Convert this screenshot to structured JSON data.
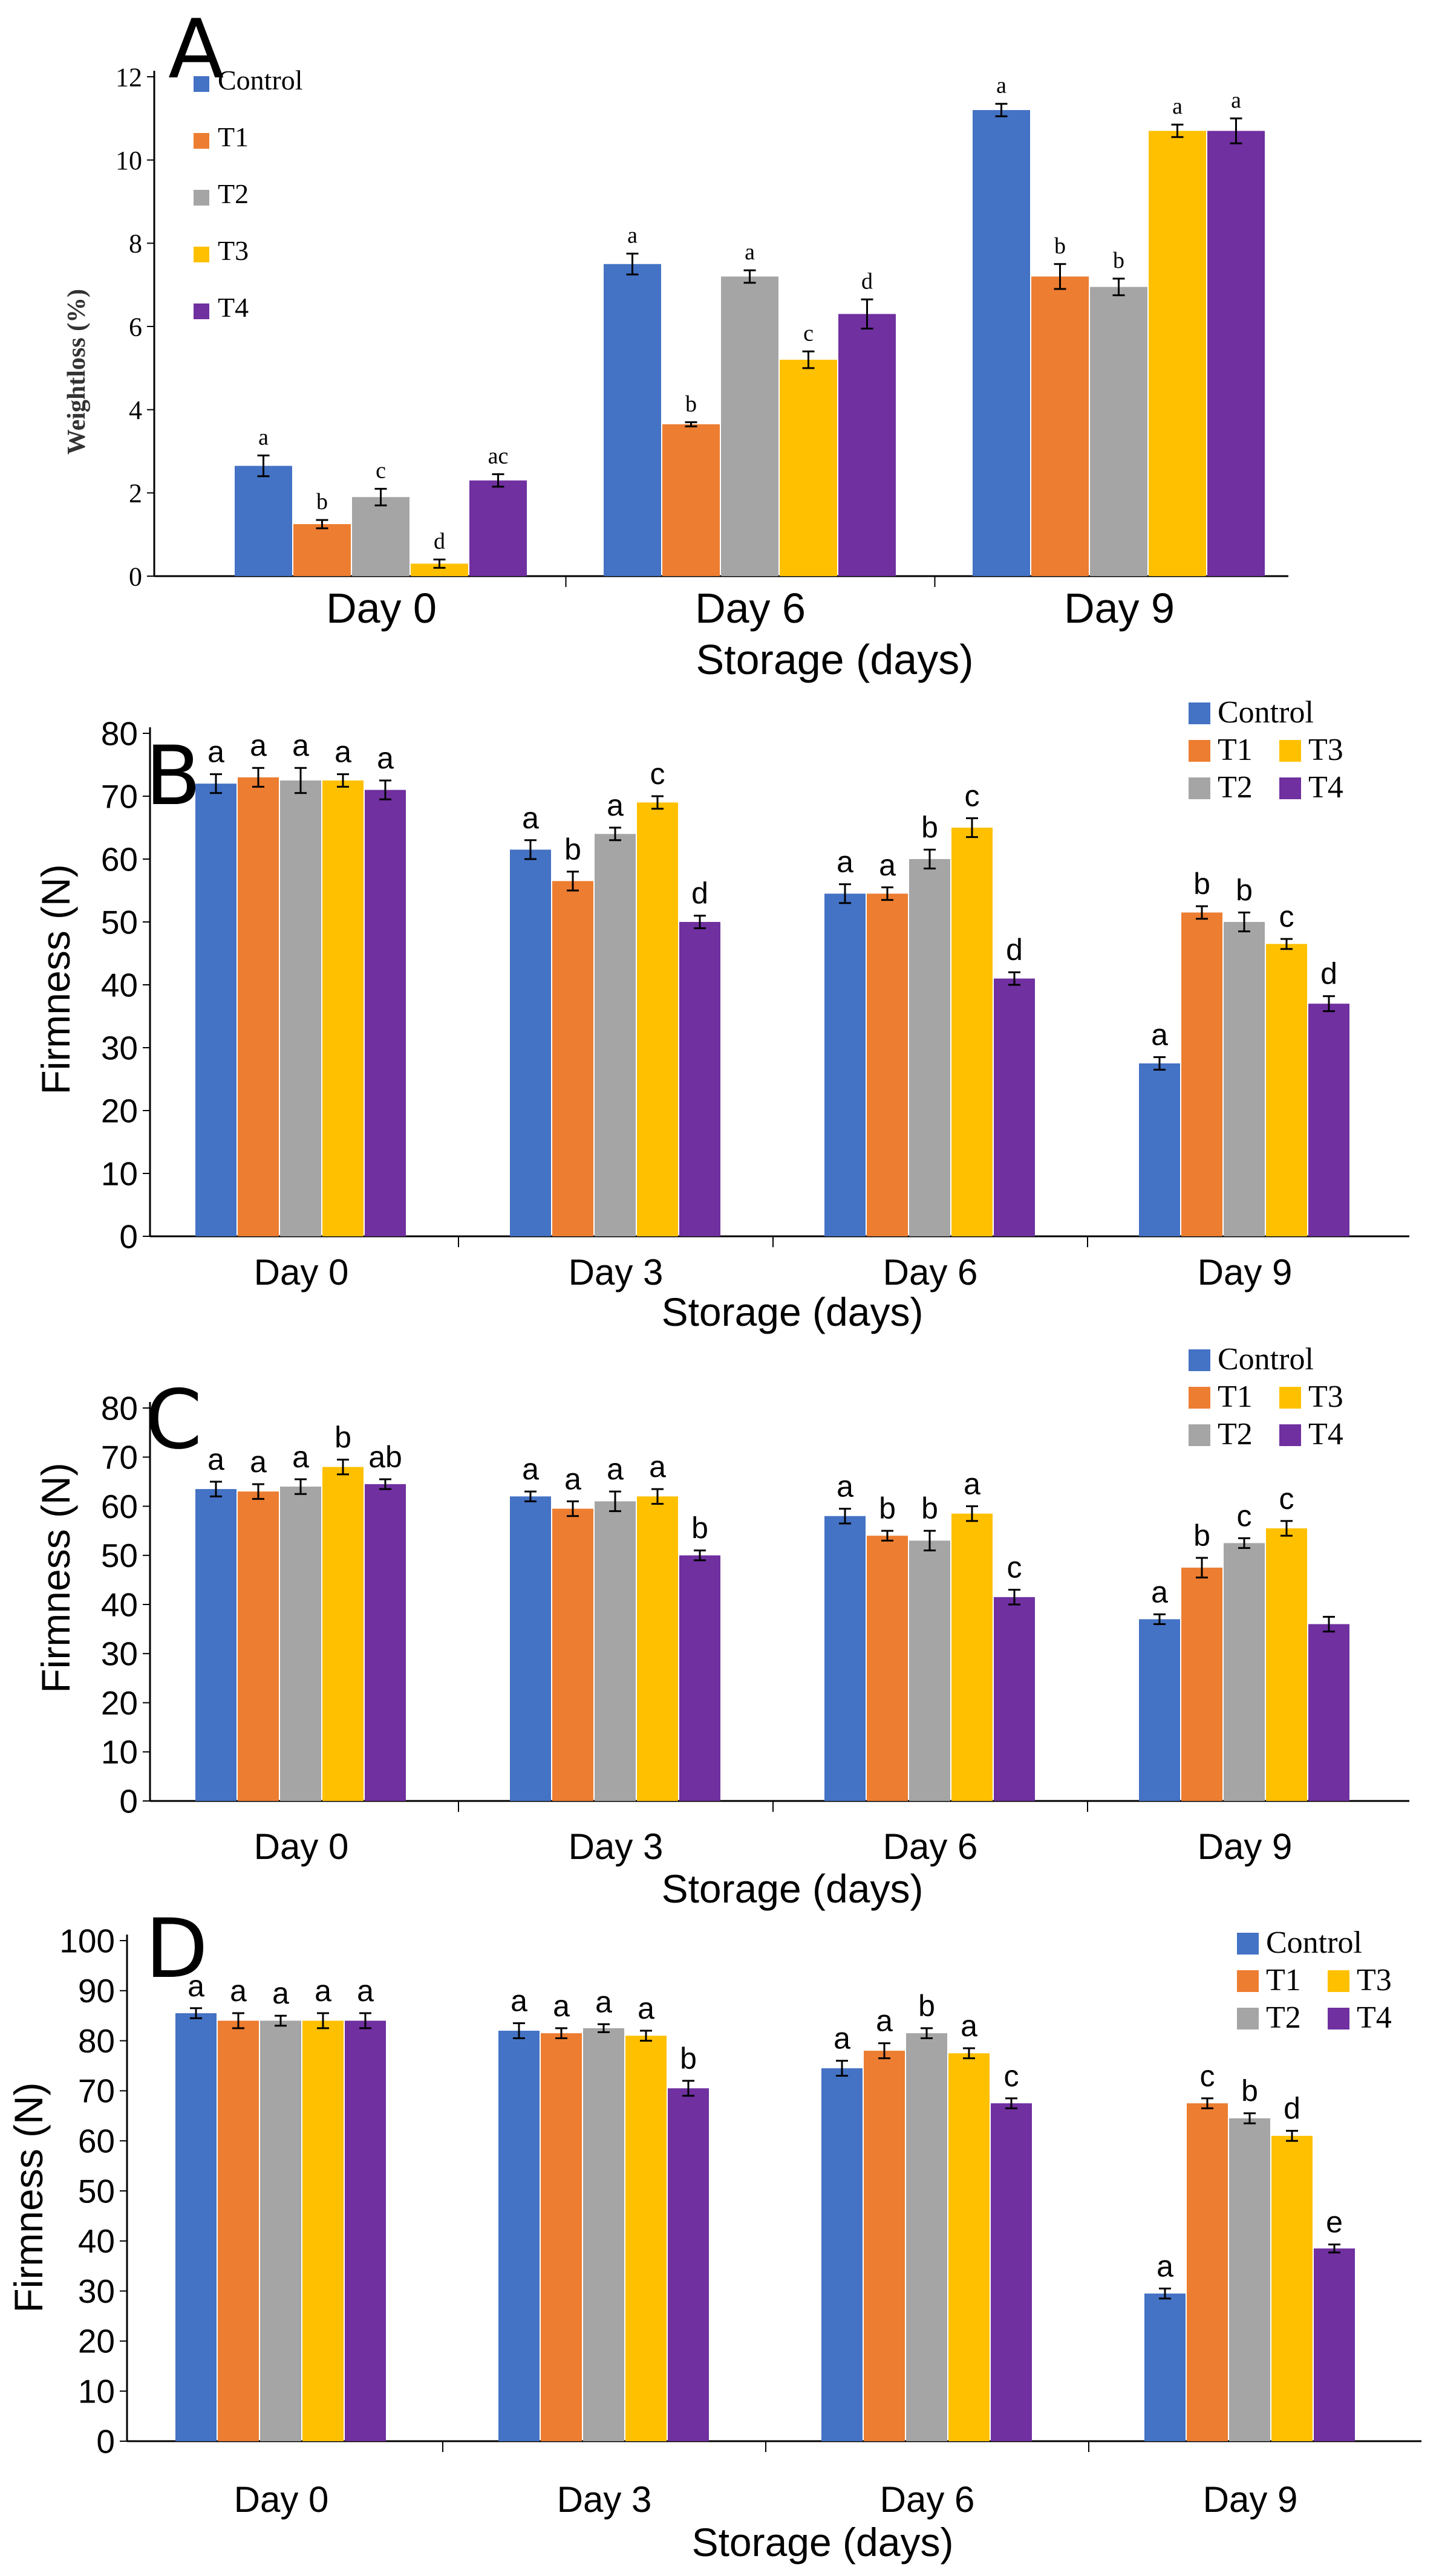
{
  "colors": {
    "Control": "#4472c4",
    "T1": "#ed7d31",
    "T2": "#a5a5a5",
    "T3": "#ffc000",
    "T4": "#7030a0"
  },
  "chart_data": [
    {
      "panel": "A",
      "type": "bar",
      "xlabel": "Storage (days)",
      "ylabel": "Weightloss (%)",
      "ylim": [
        0,
        12
      ],
      "yticks": [
        0,
        2,
        4,
        6,
        8,
        10,
        12
      ],
      "legend_placement": "top-left",
      "categories": [
        "Day 0",
        "Day 6",
        "Day 9"
      ],
      "series": [
        {
          "name": "Control",
          "values": [
            2.65,
            7.5,
            11.2
          ],
          "errors": [
            0.25,
            0.25,
            0.15
          ],
          "letters": [
            "a",
            "a",
            "a"
          ]
        },
        {
          "name": "T1",
          "values": [
            1.25,
            3.65,
            7.2
          ],
          "errors": [
            0.1,
            0.05,
            0.3
          ],
          "letters": [
            "b",
            "b",
            "b"
          ]
        },
        {
          "name": "T2",
          "values": [
            1.9,
            7.2,
            6.95
          ],
          "errors": [
            0.2,
            0.15,
            0.2
          ],
          "letters": [
            "c",
            "a",
            "b"
          ]
        },
        {
          "name": "T3",
          "values": [
            0.3,
            5.2,
            10.7
          ],
          "errors": [
            0.1,
            0.2,
            0.15
          ],
          "letters": [
            "d",
            "c",
            "a"
          ]
        },
        {
          "name": "T4",
          "values": [
            2.3,
            6.3,
            10.7
          ],
          "errors": [
            0.15,
            0.35,
            0.3
          ],
          "letters": [
            "ac",
            "d",
            "a"
          ]
        }
      ]
    },
    {
      "panel": "B",
      "type": "bar",
      "xlabel": "Storage (days)",
      "ylabel": "Firmness (N)",
      "ylim": [
        0,
        80
      ],
      "yticks": [
        0,
        10,
        20,
        30,
        40,
        50,
        60,
        70,
        80
      ],
      "legend_placement": "top-right",
      "categories": [
        "Day 0",
        "Day 3",
        "Day 6",
        "Day 9"
      ],
      "series": [
        {
          "name": "Control",
          "values": [
            72,
            61.5,
            54.5,
            27.5
          ],
          "errors": [
            1.5,
            1.5,
            1.5,
            1.0
          ],
          "letters": [
            "a",
            "a",
            "a",
            "a"
          ]
        },
        {
          "name": "T1",
          "values": [
            73,
            56.5,
            54.5,
            51.5
          ],
          "errors": [
            1.5,
            1.5,
            1.0,
            1.0
          ],
          "letters": [
            "a",
            "b",
            "a",
            "b"
          ]
        },
        {
          "name": "T2",
          "values": [
            72.5,
            64,
            60,
            50
          ],
          "errors": [
            2.0,
            1.0,
            1.5,
            1.5
          ],
          "letters": [
            "a",
            "a",
            "b",
            "b"
          ]
        },
        {
          "name": "T3",
          "values": [
            72.5,
            69,
            65,
            46.5
          ],
          "errors": [
            1.0,
            1.0,
            1.5,
            0.8
          ],
          "letters": [
            "a",
            "c",
            "c",
            "c"
          ]
        },
        {
          "name": "T4",
          "values": [
            71,
            50,
            41,
            37
          ],
          "errors": [
            1.5,
            1.0,
            1.0,
            1.2
          ],
          "letters": [
            "a",
            "d",
            "d",
            "d"
          ]
        }
      ]
    },
    {
      "panel": "C",
      "type": "bar",
      "xlabel": "Storage (days)",
      "ylabel": "Firmness (N)",
      "ylim": [
        0,
        80
      ],
      "yticks": [
        0,
        10,
        20,
        30,
        40,
        50,
        60,
        70,
        80
      ],
      "legend_placement": "top-right",
      "categories": [
        "Day 0",
        "Day 3",
        "Day 6",
        "Day 9"
      ],
      "series": [
        {
          "name": "Control",
          "values": [
            63.5,
            62,
            58,
            37
          ],
          "errors": [
            1.5,
            1.0,
            1.5,
            1.0
          ],
          "letters": [
            "a",
            "a",
            "a",
            "a"
          ]
        },
        {
          "name": "T1",
          "values": [
            63,
            59.5,
            54,
            47.5
          ],
          "errors": [
            1.5,
            1.5,
            1.0,
            2.0
          ],
          "letters": [
            "a",
            "a",
            "b",
            "b"
          ]
        },
        {
          "name": "T2",
          "values": [
            64,
            61,
            53,
            52.5
          ],
          "errors": [
            1.5,
            2.0,
            2.0,
            1.0
          ],
          "letters": [
            "a",
            "a",
            "b",
            "c"
          ]
        },
        {
          "name": "T3",
          "values": [
            68,
            62,
            58.5,
            55.5
          ],
          "errors": [
            1.5,
            1.5,
            1.5,
            1.5
          ],
          "letters": [
            "b",
            "a",
            "a",
            "c"
          ]
        },
        {
          "name": "T4",
          "values": [
            64.5,
            50,
            41.5,
            36
          ],
          "errors": [
            1.0,
            1.0,
            1.5,
            1.5
          ],
          "letters": [
            "ab",
            "b",
            "c",
            ""
          ]
        }
      ]
    },
    {
      "panel": "D",
      "type": "bar",
      "xlabel": "Storage (days)",
      "ylabel": "Firmness (N)",
      "ylim": [
        0,
        100
      ],
      "yticks": [
        0,
        10,
        20,
        30,
        40,
        50,
        60,
        70,
        80,
        90,
        100
      ],
      "legend_placement": "top-right",
      "categories": [
        "Day 0",
        "Day 3",
        "Day 6",
        "Day 9"
      ],
      "series": [
        {
          "name": "Control",
          "values": [
            85.5,
            82,
            74.5,
            29.5
          ],
          "errors": [
            1.0,
            1.5,
            1.5,
            1.0
          ],
          "letters": [
            "a",
            "a",
            "a",
            "a"
          ]
        },
        {
          "name": "T1",
          "values": [
            84,
            81.5,
            78,
            67.5
          ],
          "errors": [
            1.5,
            1.0,
            1.5,
            1.0
          ],
          "letters": [
            "a",
            "a",
            "a",
            "c"
          ]
        },
        {
          "name": "T2",
          "values": [
            84,
            82.5,
            81.5,
            64.5
          ],
          "errors": [
            1.0,
            0.8,
            1.0,
            1.0
          ],
          "letters": [
            "a",
            "a",
            "b",
            "b"
          ]
        },
        {
          "name": "T3",
          "values": [
            84,
            81,
            77.5,
            61
          ],
          "errors": [
            1.5,
            1.0,
            1.0,
            1.0
          ],
          "letters": [
            "a",
            "a",
            "a",
            "d"
          ]
        },
        {
          "name": "T4",
          "values": [
            84,
            70.5,
            67.5,
            38.5
          ],
          "errors": [
            1.5,
            1.5,
            1.0,
            0.8
          ],
          "letters": [
            "a",
            "b",
            "c",
            "e"
          ]
        }
      ]
    }
  ]
}
